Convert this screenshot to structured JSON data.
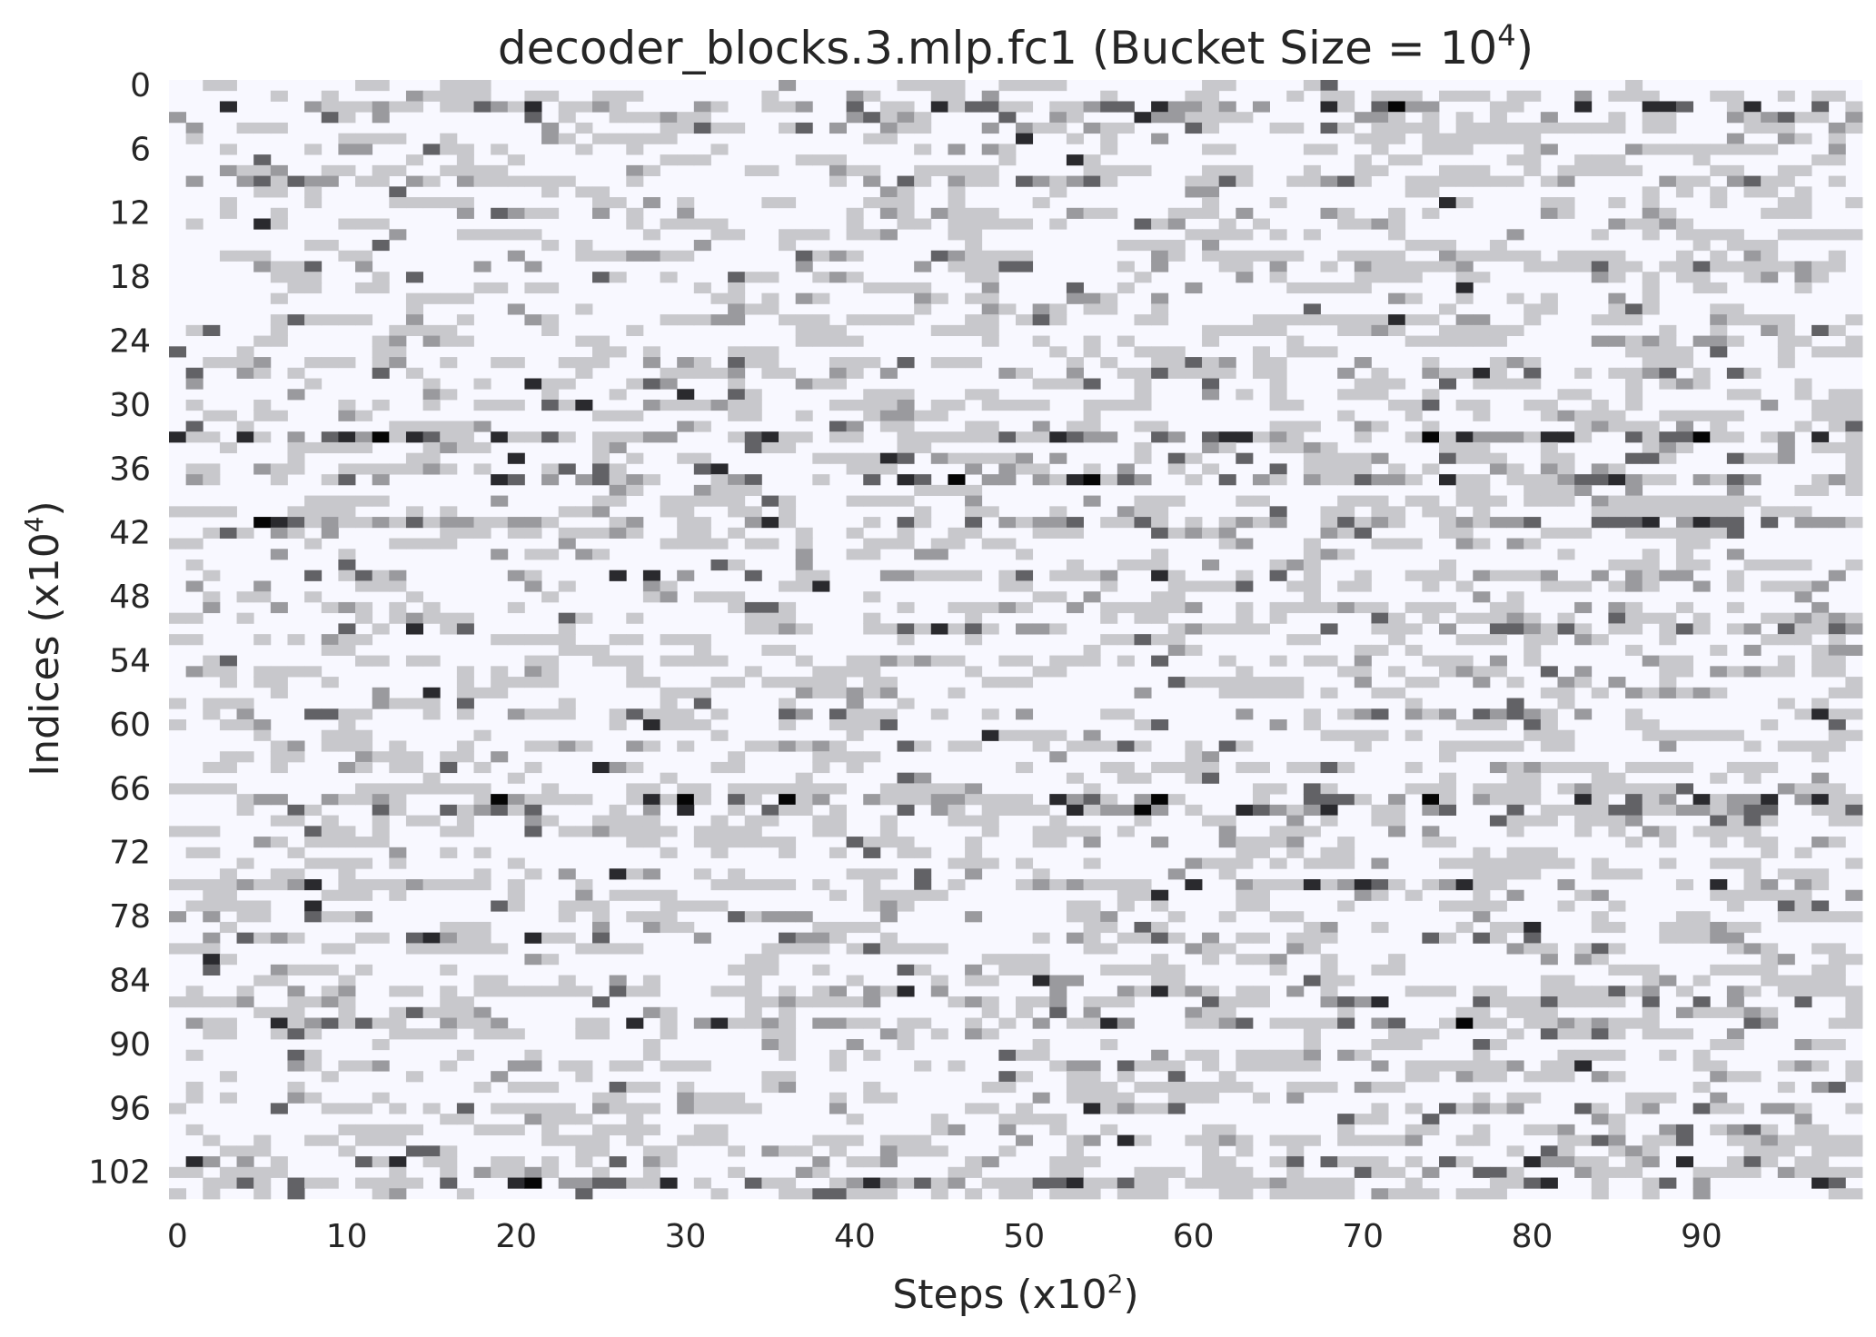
{
  "chart_data": {
    "type": "heatmap",
    "title": {
      "prefix": "decoder_blocks.3.mlp.fc1 (Bucket Size = 10",
      "sup": "4",
      "suffix": ")"
    },
    "xlabel": {
      "prefix": "Steps (x10",
      "sup": "2",
      "suffix": ")"
    },
    "ylabel": {
      "prefix": "Indices (x10",
      "sup": "4",
      "suffix": ")"
    },
    "x_ticks": [
      "0",
      "10",
      "20",
      "30",
      "40",
      "50",
      "60",
      "70",
      "80",
      "90"
    ],
    "y_ticks": [
      "0",
      "6",
      "12",
      "18",
      "24",
      "30",
      "36",
      "42",
      "48",
      "54",
      "60",
      "66",
      "72",
      "78",
      "84",
      "90",
      "96",
      "102"
    ],
    "n_steps": 100,
    "n_rows": 105,
    "x_range": [
      0,
      99
    ],
    "y_range": [
      0,
      104
    ],
    "colormap": {
      "low": "#f8f8ff",
      "levels": [
        "#f8f8ff",
        "#c8c8cc",
        "#9a9a9e",
        "#626266",
        "#2a2a2e",
        "#050505"
      ]
    },
    "grid": false,
    "colorbar": false,
    "dense_rows": [
      2,
      33,
      37,
      41,
      67,
      68,
      88,
      103
    ],
    "medium_rows": [
      3,
      9,
      17,
      27,
      35,
      46,
      51,
      59,
      75,
      80,
      86,
      96,
      101
    ]
  }
}
